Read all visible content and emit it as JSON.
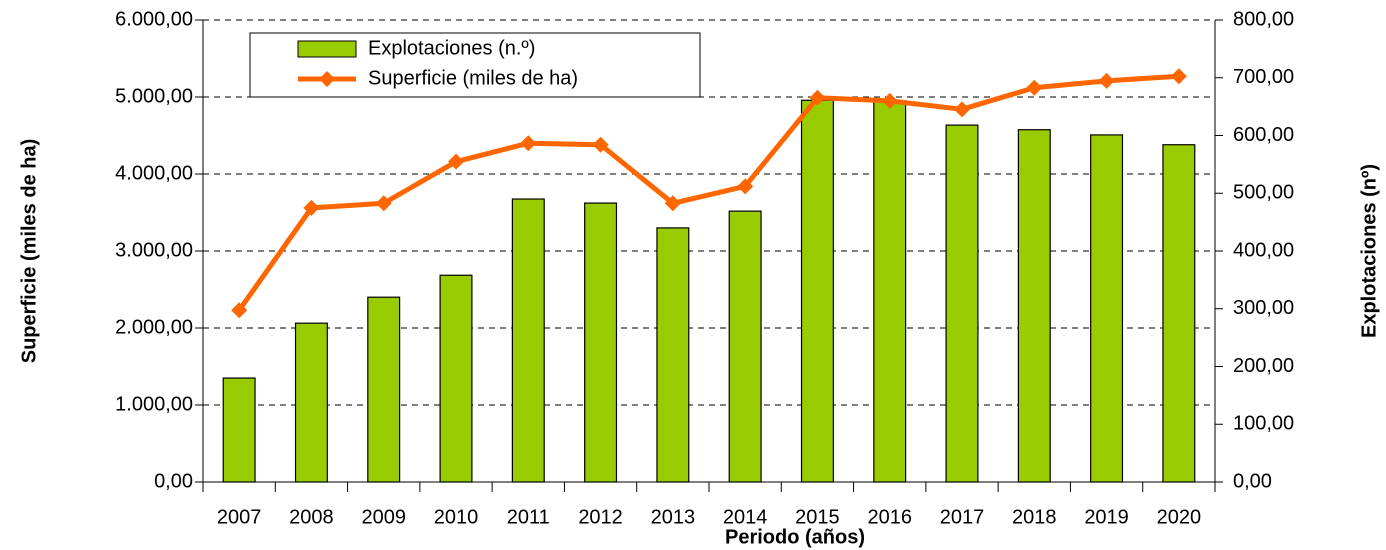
{
  "chart_data": {
    "type": "bar_line",
    "categories": [
      "2007",
      "2008",
      "2009",
      "2010",
      "2011",
      "2012",
      "2013",
      "2014",
      "2015",
      "2016",
      "2017",
      "2018",
      "2019",
      "2020"
    ],
    "series": [
      {
        "name": "Explotaciones (n.º)",
        "type": "bar",
        "axis": "y2",
        "color": "#99cc00",
        "values": [
          180,
          275,
          320,
          358,
          490,
          483,
          440,
          469,
          661,
          660,
          618,
          610,
          601,
          584
        ]
      },
      {
        "name": "Superficie (miles de ha)",
        "type": "line",
        "axis": "y",
        "color": "#ff6600",
        "values": [
          2230,
          3560,
          3620,
          4160,
          4400,
          4380,
          3620,
          3840,
          4990,
          4950,
          4840,
          5120,
          5210,
          5270
        ]
      }
    ],
    "x_label": "Periodo (años)",
    "y_label": "Superficie (miles de ha)",
    "y2_label": "Explotaciones (nº)",
    "ylim": [
      0,
      6000
    ],
    "yticks": [
      {
        "value": 0,
        "label": "0,00"
      },
      {
        "value": 1000,
        "label": "1.000,00"
      },
      {
        "value": 2000,
        "label": "2.000,00"
      },
      {
        "value": 3000,
        "label": "3.000,00"
      },
      {
        "value": 4000,
        "label": "4.000,00"
      },
      {
        "value": 5000,
        "label": "5.000,00"
      },
      {
        "value": 6000,
        "label": "6.000,00"
      }
    ],
    "y2lim": [
      0,
      800
    ],
    "y2ticks": [
      {
        "value": 0,
        "label": "0,00"
      },
      {
        "value": 100,
        "label": "100,00"
      },
      {
        "value": 200,
        "label": "200,00"
      },
      {
        "value": 300,
        "label": "300,00"
      },
      {
        "value": 400,
        "label": "400,00"
      },
      {
        "value": 500,
        "label": "500,00"
      },
      {
        "value": 600,
        "label": "600,00"
      },
      {
        "value": 700,
        "label": "700,00"
      },
      {
        "value": 800,
        "label": "800,00"
      }
    ],
    "grid": true,
    "legend": "upper left"
  }
}
